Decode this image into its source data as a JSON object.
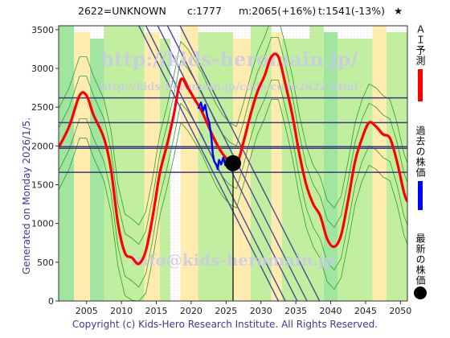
{
  "header": {
    "code": "2622=UNKNOWN",
    "current": "c:1777",
    "mid": "m:2065(+16%)",
    "target": "t:1541(-13%)",
    "star": "★"
  },
  "side_note": "Generated on Monday 2026/1/5.",
  "copyright": "Copyright (c) Kids-Hero Research Institute. All Rights Reserved.",
  "watermarks": [
    "http://kids-heromain.jp/",
    "http://kids-heromain.jp/code/code2622.html",
    "info@kids-heromain.jp"
  ],
  "legend": {
    "ai": {
      "label": "ＡＩ予測",
      "color": "#ff0000"
    },
    "past": {
      "label": "過去の株価",
      "color": "#0000ff"
    },
    "latest": {
      "label": "最新の株価",
      "color": "#000000"
    }
  },
  "chart_data": {
    "type": "line",
    "title": "",
    "xlabel": "",
    "ylabel": "",
    "xlim": [
      2001,
      2051
    ],
    "ylim": [
      0,
      3550
    ],
    "xticks": [
      "2005",
      "2010",
      "2015",
      "2020",
      "2025",
      "2030",
      "2035",
      "2040",
      "2045",
      "2050"
    ],
    "yticks": [
      "0",
      "500",
      "1000",
      "1500",
      "2000",
      "2500",
      "3000",
      "3500"
    ],
    "grid": false,
    "horizontal_lines": [
      2620,
      2300,
      1990,
      1970,
      1660
    ],
    "vertical_line": 2026,
    "series": [
      {
        "name": "ＡＩ予測",
        "color": "#ff0000",
        "points": [
          [
            2001,
            1980
          ],
          [
            2002.5,
            2250
          ],
          [
            2004,
            2650
          ],
          [
            2005,
            2650
          ],
          [
            2006,
            2400
          ],
          [
            2007.5,
            2100
          ],
          [
            2008.5,
            1700
          ],
          [
            2009.5,
            1000
          ],
          [
            2010.5,
            620
          ],
          [
            2011.5,
            560
          ],
          [
            2012.5,
            480
          ],
          [
            2013.5,
            650
          ],
          [
            2014.5,
            1100
          ],
          [
            2015.5,
            1650
          ],
          [
            2016.5,
            2000
          ],
          [
            2017.5,
            2400
          ],
          [
            2018.5,
            2850
          ],
          [
            2019.5,
            2750
          ],
          [
            2020.5,
            2600
          ],
          [
            2021.5,
            2450
          ],
          [
            2022.5,
            2250
          ],
          [
            2023.5,
            2050
          ],
          [
            2024.5,
            1900
          ],
          [
            2025.5,
            1800
          ],
          [
            2026.5,
            1750
          ],
          [
            2027.5,
            2050
          ],
          [
            2028.5,
            2400
          ],
          [
            2029.5,
            2700
          ],
          [
            2030.5,
            2900
          ],
          [
            2031.5,
            3150
          ],
          [
            2032.5,
            3150
          ],
          [
            2033.5,
            2800
          ],
          [
            2034.5,
            2400
          ],
          [
            2035.5,
            1900
          ],
          [
            2036.5,
            1500
          ],
          [
            2037.5,
            1250
          ],
          [
            2038.5,
            1100
          ],
          [
            2039.5,
            800
          ],
          [
            2040.5,
            700
          ],
          [
            2041.5,
            850
          ],
          [
            2042.5,
            1300
          ],
          [
            2043.5,
            1800
          ],
          [
            2044.5,
            2100
          ],
          [
            2045.5,
            2300
          ],
          [
            2046.5,
            2250
          ],
          [
            2047.5,
            2150
          ],
          [
            2048.5,
            2100
          ],
          [
            2049.5,
            1800
          ],
          [
            2050.5,
            1400
          ],
          [
            2051,
            1280
          ]
        ]
      },
      {
        "name": "過去の株価",
        "color": "#0000ff",
        "points": [
          [
            2021.0,
            2480
          ],
          [
            2021.4,
            2560
          ],
          [
            2021.7,
            2450
          ],
          [
            2022.0,
            2530
          ],
          [
            2022.3,
            2380
          ],
          [
            2022.6,
            2300
          ],
          [
            2022.9,
            2100
          ],
          [
            2023.1,
            1900
          ],
          [
            2023.3,
            1800
          ],
          [
            2023.6,
            1760
          ],
          [
            2023.8,
            1700
          ],
          [
            2024.0,
            1820
          ],
          [
            2024.3,
            1760
          ],
          [
            2024.6,
            1850
          ],
          [
            2024.9,
            1750
          ],
          [
            2025.2,
            1820
          ],
          [
            2025.5,
            1780
          ],
          [
            2025.8,
            1800
          ],
          [
            2026.0,
            1777
          ]
        ]
      }
    ],
    "latest_point": [
      2026,
      1777
    ]
  }
}
